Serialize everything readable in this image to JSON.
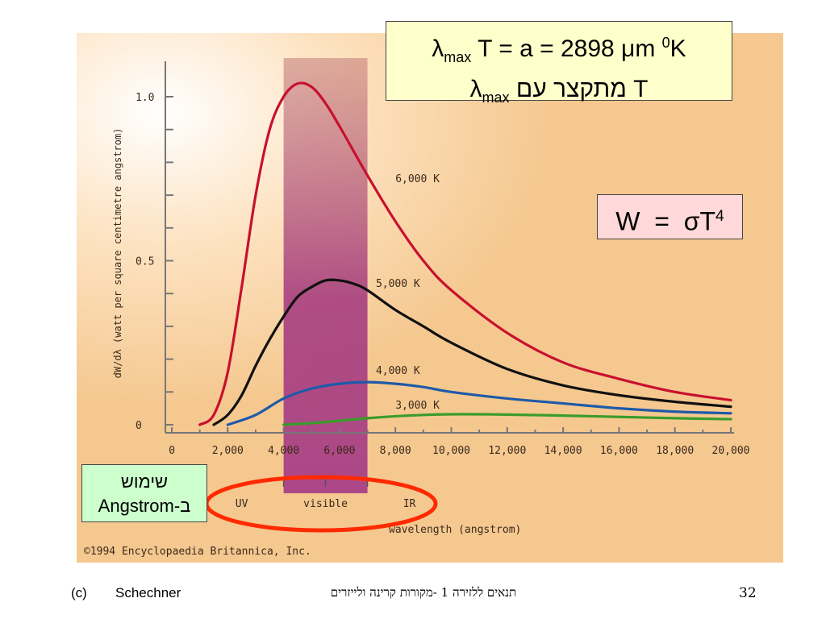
{
  "chart_data": {
    "type": "line",
    "title": "",
    "xlabel": "wavelength (angstrom)",
    "ylabel": "dW/dλ (watt per square centimetre angstrom)",
    "xlim": [
      0,
      20000
    ],
    "ylim": [
      0,
      1.1
    ],
    "x_ticks": [
      "0",
      "2,000",
      "4,000",
      "6,000",
      "8,000",
      "10,000",
      "12,000",
      "14,000",
      "16,000",
      "18,000",
      "20,000"
    ],
    "y_ticks": [
      "0",
      "0.5",
      "1.0"
    ],
    "bands": [
      {
        "label": "UV",
        "range": [
          0,
          4000
        ]
      },
      {
        "label": "visible",
        "range": [
          4000,
          7000
        ]
      },
      {
        "label": "IR",
        "range": [
          7000,
          20000
        ]
      }
    ],
    "highlight_range": [
      4000,
      7000
    ],
    "series": [
      {
        "name": "6,000 K",
        "color": "#c8102e",
        "x": [
          1000,
          1500,
          2000,
          2500,
          3000,
          3500,
          4000,
          4500,
          5000,
          5500,
          6000,
          7000,
          8000,
          9000,
          10000,
          12000,
          14000,
          16000,
          18000,
          20000
        ],
        "y": [
          0.0,
          0.03,
          0.16,
          0.42,
          0.7,
          0.9,
          1.0,
          1.04,
          1.03,
          0.98,
          0.91,
          0.76,
          0.62,
          0.5,
          0.41,
          0.28,
          0.19,
          0.14,
          0.1,
          0.075
        ]
      },
      {
        "name": "5,000 K",
        "color": "#111111",
        "x": [
          1500,
          2000,
          2500,
          3000,
          3500,
          4000,
          4500,
          5000,
          5500,
          6000,
          6500,
          7000,
          8000,
          9000,
          10000,
          12000,
          14000,
          16000,
          18000,
          20000
        ],
        "y": [
          0.0,
          0.03,
          0.09,
          0.18,
          0.26,
          0.33,
          0.39,
          0.42,
          0.44,
          0.44,
          0.43,
          0.41,
          0.35,
          0.3,
          0.25,
          0.17,
          0.12,
          0.09,
          0.07,
          0.055
        ]
      },
      {
        "name": "4,000 K",
        "color": "#1e5aa8",
        "x": [
          2000,
          3000,
          4000,
          5000,
          6000,
          7000,
          8000,
          9000,
          10000,
          12000,
          14000,
          16000,
          18000,
          20000
        ],
        "y": [
          0.0,
          0.03,
          0.08,
          0.11,
          0.125,
          0.13,
          0.125,
          0.115,
          0.1,
          0.08,
          0.065,
          0.05,
          0.04,
          0.035
        ]
      },
      {
        "name": "3,000 K",
        "color": "#3a9c2a",
        "x": [
          4000,
          5000,
          6000,
          7000,
          8000,
          9000,
          10000,
          11000,
          12000,
          14000,
          16000,
          18000,
          20000
        ],
        "y": [
          0.0,
          0.005,
          0.012,
          0.02,
          0.026,
          0.03,
          0.032,
          0.032,
          0.031,
          0.028,
          0.024,
          0.02,
          0.017
        ]
      }
    ],
    "copyright": "©1994 Encyclopaedia Britannica, Inc."
  },
  "wien": {
    "line1": {
      "lambda": "λ",
      "sub": "max",
      "text": " T = a = 2898 ",
      "mu": "μ",
      "m": "m ",
      "sup": "0",
      "k": "K"
    },
    "line2": {
      "text_a": "T מתקצר עם ",
      "lambda": "λ",
      "sub": "max"
    }
  },
  "stefan": {
    "w": "W  =  ",
    "sigma": "σ",
    "t": "T",
    "sup": "4"
  },
  "usage": {
    "line1": "שימוש",
    "line2": "ב-Angstrom"
  },
  "footer": {
    "copy": "(c)",
    "author": "Schechner",
    "title": "תנאים  ללזירה 1 -מקורות קרינה ולייזרים",
    "page": "32"
  },
  "colors": {
    "panel": "#f5c890",
    "band": "#9b2f7a",
    "ellipse": "#ff2a00",
    "wien_bg": "#ffffcc",
    "stefan_bg": "#ffd9d9",
    "usage_bg": "#ccffcc"
  }
}
